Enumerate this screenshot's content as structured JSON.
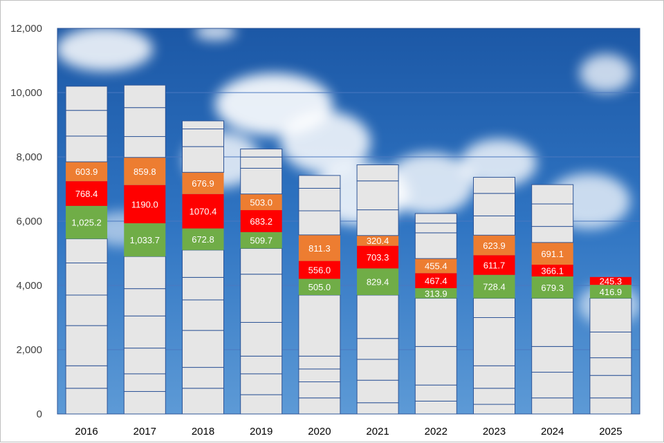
{
  "chart_data": {
    "type": "bar",
    "stacked": true,
    "title": "",
    "xlabel": "",
    "ylabel": "",
    "ylim": [
      0,
      12000
    ],
    "yticks": [
      0,
      2000,
      4000,
      6000,
      8000,
      10000,
      12000
    ],
    "ytick_labels": [
      "0",
      "2,000",
      "4,000",
      "6,000",
      "8,000",
      "10,000",
      "12,000"
    ],
    "grid": true,
    "legend": "none",
    "plot_background": "sky-with-clouds",
    "categories": [
      "2016",
      "2017",
      "2018",
      "2019",
      "2020",
      "2021",
      "2022",
      "2023",
      "2024",
      "2025"
    ],
    "colors": {
      "grey": "#e6e6e6",
      "grey_border": "#2f5597",
      "green": "#70ad47",
      "red": "#ff0000",
      "orange": "#ed7d31",
      "gridline": "#4a78c0"
    },
    "bars": [
      {
        "category": "2016",
        "lower_grey_segments": [
          800,
          700,
          1250,
          950,
          1000,
          750
        ],
        "green": 1025.2,
        "green_label": "1,025.2",
        "red": 768.4,
        "red_label": "768.4",
        "orange": 603.9,
        "orange_label": "603.9",
        "upper_grey_segments": [
          800,
          800,
          750
        ]
      },
      {
        "category": "2017",
        "lower_grey_segments": [
          700,
          550,
          800,
          1000,
          850,
          1000
        ],
        "green": 1033.7,
        "green_label": "1,033.7",
        "red": 1190.0,
        "red_label": "1190.0",
        "orange": 859.8,
        "orange_label": "859.8",
        "upper_grey_segments": [
          650,
          900,
          700
        ]
      },
      {
        "category": "2018",
        "lower_grey_segments": [
          800,
          650,
          1150,
          950,
          700,
          850
        ],
        "green": 672.8,
        "green_label": "672.8",
        "red": 1070.4,
        "red_label": "1070.4",
        "orange": 676.9,
        "orange_label": "676.9",
        "upper_grey_segments": [
          800,
          550,
          250
        ]
      },
      {
        "category": "2019",
        "lower_grey_segments": [
          600,
          650,
          550,
          1050,
          1500,
          800
        ],
        "green": 509.7,
        "green_label": "509.7",
        "red": 683.2,
        "red_label": "683.2",
        "orange": 503.0,
        "orange_label": "503.0",
        "upper_grey_segments": [
          800,
          350,
          250
        ]
      },
      {
        "category": "2020",
        "lower_grey_segments": [
          500,
          500,
          400,
          400,
          1900
        ],
        "green": 505.0,
        "green_label": "505.0",
        "red": 556.0,
        "red_label": "556.0",
        "orange": 811.3,
        "orange_label": "811.3",
        "upper_grey_segments": [
          750,
          700,
          400
        ]
      },
      {
        "category": "2021",
        "lower_grey_segments": [
          350,
          700,
          650,
          650,
          1350
        ],
        "green": 829.4,
        "green_label": "829.4",
        "red": 703.3,
        "red_label": "703.3",
        "orange": 320.4,
        "orange_label": "320.4",
        "upper_grey_segments": [
          800,
          900,
          500
        ]
      },
      {
        "category": "2022",
        "lower_grey_segments": [
          400,
          500,
          1200,
          1500
        ],
        "green": 313.9,
        "green_label": "313.9",
        "red": 467.4,
        "red_label": "467.4",
        "orange": 455.4,
        "orange_label": "455.4",
        "upper_grey_segments": [
          800,
          300,
          300
        ]
      },
      {
        "category": "2023",
        "lower_grey_segments": [
          300,
          500,
          700,
          1500,
          600
        ],
        "green": 728.4,
        "green_label": "728.4",
        "red": 611.7,
        "red_label": "611.7",
        "orange": 623.9,
        "orange_label": "623.9",
        "upper_grey_segments": [
          600,
          700,
          500
        ]
      },
      {
        "category": "2024",
        "lower_grey_segments": [
          500,
          800,
          800,
          1500
        ],
        "green": 679.3,
        "green_label": "679.3",
        "red": 366.1,
        "red_label": "366.1",
        "orange": 691.1,
        "orange_label": "691.1",
        "upper_grey_segments": [
          500,
          700,
          600
        ]
      },
      {
        "category": "2025",
        "lower_grey_segments": [
          500,
          700,
          550,
          800,
          1050
        ],
        "green": 416.9,
        "green_label": "416.9",
        "red": 245.3,
        "red_label": "245.3",
        "orange": 0,
        "upper_grey_segments": []
      }
    ]
  }
}
